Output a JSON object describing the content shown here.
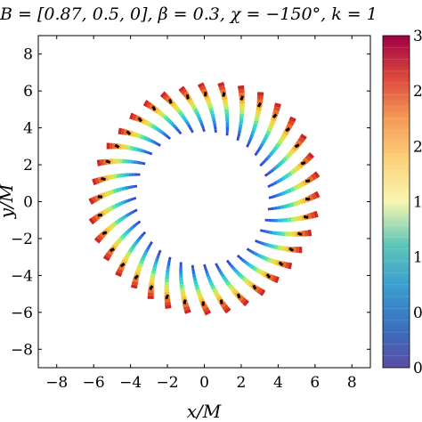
{
  "chart_data": {
    "type": "scatter",
    "title": "B = [0.87,  0.5,  0],   β = 0.3,   χ = −150°,   k = 1",
    "xlabel": "x/M",
    "ylabel": "y/M",
    "xlim": [
      -9,
      9
    ],
    "ylim": [
      -9,
      9
    ],
    "xticks": [
      -8,
      -6,
      -4,
      -2,
      0,
      2,
      4,
      6,
      8
    ],
    "yticks": [
      -8,
      -6,
      -4,
      -2,
      0,
      2,
      4,
      6,
      8
    ],
    "xtick_labels": [
      "−8",
      "−6",
      "−4",
      "−2",
      "0",
      "2",
      "4",
      "6",
      "8"
    ],
    "ytick_labels": [
      "−8",
      "−6",
      "−4",
      "−2",
      "0",
      "2",
      "4",
      "6",
      "8"
    ],
    "grid": false,
    "colorbar": {
      "colormap": "jet",
      "tick_labels": [
        "0",
        "0",
        "1",
        "1",
        "2",
        "2",
        "3"
      ]
    },
    "segments": {
      "count": 36,
      "description_values": "radial strokes of inner radius ~3.6 and outer radius ~6.3 (in M units), colored from blue (inner) to red (outer), with black ring marker near r ~ 5.5"
    },
    "rays": [
      {
        "angle_deg": 0,
        "r_in": 3.5,
        "r_out": 6.3
      },
      {
        "angle_deg": 10,
        "r_in": 3.5,
        "r_out": 6.3
      },
      {
        "angle_deg": 20,
        "r_in": 3.5,
        "r_out": 6.4
      },
      {
        "angle_deg": 30,
        "r_in": 3.5,
        "r_out": 6.5
      },
      {
        "angle_deg": 40,
        "r_in": 3.6,
        "r_out": 6.5
      },
      {
        "angle_deg": 50,
        "r_in": 3.6,
        "r_out": 6.5
      },
      {
        "angle_deg": 60,
        "r_in": 3.6,
        "r_out": 6.4
      },
      {
        "angle_deg": 70,
        "r_in": 3.6,
        "r_out": 6.3
      },
      {
        "angle_deg": 80,
        "r_in": 3.6,
        "r_out": 6.2
      },
      {
        "angle_deg": 90,
        "r_in": 3.6,
        "r_out": 6.1
      },
      {
        "angle_deg": 100,
        "r_in": 3.6,
        "r_out": 6.1
      },
      {
        "angle_deg": 110,
        "r_in": 3.7,
        "r_out": 6.1
      },
      {
        "angle_deg": 120,
        "r_in": 3.7,
        "r_out": 6.0
      },
      {
        "angle_deg": 130,
        "r_in": 3.7,
        "r_out": 5.9
      },
      {
        "angle_deg": 140,
        "r_in": 3.7,
        "r_out": 6.0
      },
      {
        "angle_deg": 150,
        "r_in": 3.7,
        "r_out": 6.1
      },
      {
        "angle_deg": 160,
        "r_in": 3.7,
        "r_out": 6.1
      },
      {
        "angle_deg": 170,
        "r_in": 3.7,
        "r_out": 6.2
      },
      {
        "angle_deg": 180,
        "r_in": 3.7,
        "r_out": 6.3
      },
      {
        "angle_deg": 190,
        "r_in": 3.7,
        "r_out": 6.3
      },
      {
        "angle_deg": 200,
        "r_in": 3.7,
        "r_out": 6.3
      },
      {
        "angle_deg": 210,
        "r_in": 3.7,
        "r_out": 6.3
      },
      {
        "angle_deg": 220,
        "r_in": 3.7,
        "r_out": 6.2
      },
      {
        "angle_deg": 230,
        "r_in": 3.7,
        "r_out": 6.2
      },
      {
        "angle_deg": 240,
        "r_in": 3.7,
        "r_out": 6.3
      },
      {
        "angle_deg": 250,
        "r_in": 3.7,
        "r_out": 6.3
      },
      {
        "angle_deg": 260,
        "r_in": 3.7,
        "r_out": 6.3
      },
      {
        "angle_deg": 270,
        "r_in": 3.6,
        "r_out": 6.3
      },
      {
        "angle_deg": 280,
        "r_in": 3.6,
        "r_out": 6.2
      },
      {
        "angle_deg": 290,
        "r_in": 3.6,
        "r_out": 6.1
      },
      {
        "angle_deg": 300,
        "r_in": 3.6,
        "r_out": 6.0
      },
      {
        "angle_deg": 310,
        "r_in": 3.6,
        "r_out": 6.0
      },
      {
        "angle_deg": 320,
        "r_in": 3.6,
        "r_out": 6.0
      },
      {
        "angle_deg": 330,
        "r_in": 3.5,
        "r_out": 6.1
      },
      {
        "angle_deg": 340,
        "r_in": 3.5,
        "r_out": 6.2
      },
      {
        "angle_deg": 350,
        "r_in": 3.5,
        "r_out": 6.2
      }
    ]
  }
}
